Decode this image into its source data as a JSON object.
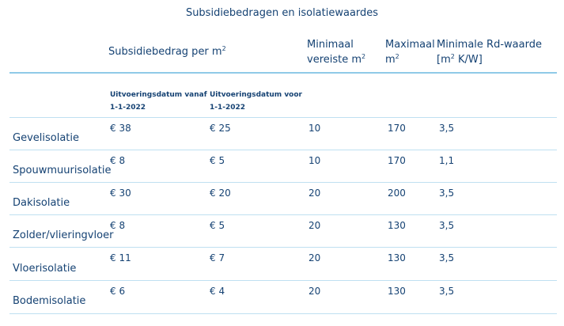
{
  "table": {
    "caption": "Subsidiebedragen en isolatiewaardes",
    "headers": {
      "subsidy": "Subsidiebedrag per m",
      "subsidy_sup": "2",
      "min_line1": "Minimaal",
      "min_line2": "vereiste m",
      "min_sup": "2",
      "max_line1": "Maximaal",
      "max_line2": "m",
      "max_sup": "2",
      "rd_line1": "Minimale Rd-waarde",
      "rd_line2": "[m",
      "rd_sup": "2",
      "rd_line2_end": " K/W]"
    },
    "subheaders": {
      "from_line1": "Uitvoeringsdatum vanaf",
      "from_line2": "1-1-2022",
      "before_line1": "Uitvoeringsdatum voor",
      "before_line2": "1-1-2022"
    },
    "rows": [
      {
        "name": "Gevelisolatie",
        "from": "€ 38",
        "before": "€ 25",
        "min": "10",
        "max": "170",
        "rd": "3,5"
      },
      {
        "name": "Spouwmuurisolatie",
        "from": "€ 8",
        "before": "€ 5",
        "min": "10",
        "max": "170",
        "rd": "1,1"
      },
      {
        "name": "Dakisolatie",
        "from": "€ 30",
        "before": "€ 20",
        "min": "20",
        "max": "200",
        "rd": "3,5"
      },
      {
        "name": "Zolder/vlieringvloer",
        "from": "€ 8",
        "before": "€ 5",
        "min": "20",
        "max": "130",
        "rd": "3,5"
      },
      {
        "name": "Vloerisolatie",
        "from": "€ 11",
        "before": "€ 7",
        "min": "20",
        "max": "130",
        "rd": "3,5"
      },
      {
        "name": "Bodemisolatie",
        "from": "€ 6",
        "before": "€ 4",
        "min": "20",
        "max": "130",
        "rd": "3,5"
      }
    ]
  }
}
